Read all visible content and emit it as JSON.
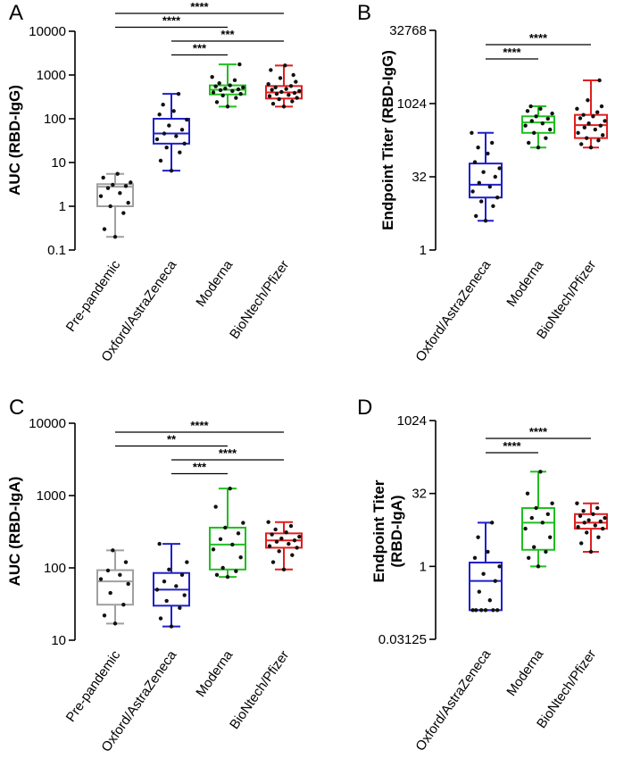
{
  "figure": {
    "panels": [
      {
        "id": "A",
        "letter": "A"
      },
      {
        "id": "B",
        "letter": "B"
      },
      {
        "id": "C",
        "letter": "C"
      },
      {
        "id": "D",
        "letter": "D"
      }
    ]
  },
  "chart_data": [
    {
      "panel": "A",
      "type": "box",
      "ylabel": "AUC (RBD-IgG)",
      "yscale": "log10",
      "ylim": [
        0.1,
        10000
      ],
      "yticks": [
        0.1,
        1,
        10,
        100,
        1000,
        10000
      ],
      "ytick_labels": [
        "0.1",
        "1",
        "10",
        "100",
        "1000",
        "10000"
      ],
      "categories": [
        "Pre-pandemic",
        "Oxford/AstraZeneca",
        "Moderna",
        "BioNtech/Pfizer"
      ],
      "colors": [
        "#a0a0a0",
        "#1f1fc8",
        "#1fbf1f",
        "#e01e1e"
      ],
      "boxes": [
        {
          "min": 0.2,
          "q1": 1.0,
          "median": 2.8,
          "q3": 3.2,
          "max": 5.5
        },
        {
          "min": 6.5,
          "q1": 27,
          "median": 46,
          "q3": 100,
          "max": 370
        },
        {
          "min": 190,
          "q1": 360,
          "median": 460,
          "q3": 580,
          "max": 1750
        },
        {
          "min": 190,
          "q1": 290,
          "median": 400,
          "q3": 560,
          "max": 1650
        }
      ],
      "points": [
        [
          0.2,
          0.3,
          0.7,
          1.0,
          1.2,
          1.7,
          2.0,
          2.6,
          2.9,
          3.1,
          3.5,
          4.5,
          5.5
        ],
        [
          6.5,
          11,
          17,
          22,
          27,
          34,
          40,
          46,
          56,
          70,
          95,
          125,
          150,
          210,
          370
        ],
        [
          190,
          240,
          300,
          340,
          370,
          400,
          430,
          450,
          470,
          490,
          520,
          550,
          580,
          650,
          760,
          900,
          1750
        ],
        [
          190,
          220,
          250,
          280,
          300,
          330,
          350,
          370,
          390,
          410,
          430,
          460,
          480,
          520,
          560,
          620,
          700,
          850,
          1000,
          1300,
          1650
        ]
      ],
      "significance": [
        {
          "from": 0,
          "to": 3,
          "label": "****"
        },
        {
          "from": 0,
          "to": 2,
          "label": "****"
        },
        {
          "from": 1,
          "to": 3,
          "label": "***"
        },
        {
          "from": 1,
          "to": 2,
          "label": "***"
        }
      ]
    },
    {
      "panel": "B",
      "type": "box",
      "ylabel": "Endpoint Titer (RBD-IgG)",
      "yscale": "log2",
      "ylim": [
        1,
        32768
      ],
      "yticks": [
        1,
        32,
        1024,
        32768
      ],
      "ytick_labels": [
        "1",
        "32",
        "1024",
        "32768"
      ],
      "categories": [
        "Oxford/AstraZeneca",
        "Moderna",
        "BioNtech/Pfizer"
      ],
      "colors": [
        "#1f1fc8",
        "#1fbf1f",
        "#e01e1e"
      ],
      "boxes": [
        {
          "min": 4,
          "q1": 12,
          "median": 22,
          "q3": 60,
          "max": 256
        },
        {
          "min": 128,
          "q1": 256,
          "median": 420,
          "q3": 560,
          "max": 900
        },
        {
          "min": 128,
          "q1": 200,
          "median": 370,
          "q3": 600,
          "max": 3072
        }
      ],
      "points": [
        [
          4,
          5,
          8,
          10,
          12,
          16,
          20,
          24,
          32,
          40,
          48,
          64,
          96,
          128,
          160,
          256
        ],
        [
          128,
          160,
          200,
          256,
          300,
          360,
          400,
          450,
          500,
          560,
          640,
          720,
          800,
          900
        ],
        [
          128,
          150,
          180,
          200,
          230,
          256,
          300,
          330,
          360,
          400,
          450,
          512,
          560,
          600,
          680,
          800,
          900,
          1200,
          3072
        ]
      ],
      "significance": [
        {
          "from": 0,
          "to": 2,
          "label": "****"
        },
        {
          "from": 0,
          "to": 1,
          "label": "****"
        }
      ]
    },
    {
      "panel": "C",
      "type": "box",
      "ylabel": "AUC (RBD-IgA)",
      "yscale": "log10",
      "ylim": [
        10,
        10000
      ],
      "yticks": [
        10,
        100,
        1000,
        10000
      ],
      "ytick_labels": [
        "10",
        "100",
        "1000",
        "10000"
      ],
      "categories": [
        "Pre-pandemic",
        "Oxford/AstraZeneca",
        "Moderna",
        "BioNtech/Pfizer"
      ],
      "colors": [
        "#a0a0a0",
        "#1f1fc8",
        "#1fbf1f",
        "#e01e1e"
      ],
      "boxes": [
        {
          "min": 17,
          "q1": 31,
          "median": 65,
          "q3": 93,
          "max": 175
        },
        {
          "min": 15.5,
          "q1": 30,
          "median": 50,
          "q3": 85,
          "max": 215
        },
        {
          "min": 75,
          "q1": 95,
          "median": 210,
          "q3": 360,
          "max": 1250
        },
        {
          "min": 95,
          "q1": 190,
          "median": 240,
          "q3": 300,
          "max": 430
        }
      ],
      "points": [
        [
          17,
          22,
          31,
          45,
          60,
          70,
          80,
          92,
          120,
          175
        ],
        [
          15.5,
          20,
          28,
          35,
          42,
          50,
          56,
          65,
          80,
          95,
          120,
          215
        ],
        [
          75,
          80,
          90,
          100,
          140,
          180,
          210,
          250,
          300,
          360,
          420,
          700,
          1250
        ],
        [
          95,
          120,
          150,
          170,
          190,
          200,
          215,
          230,
          240,
          255,
          270,
          290,
          310,
          340,
          380,
          430
        ]
      ],
      "significance": [
        {
          "from": 0,
          "to": 3,
          "label": "****"
        },
        {
          "from": 0,
          "to": 2,
          "label": "**"
        },
        {
          "from": 1,
          "to": 3,
          "label": "****"
        },
        {
          "from": 1,
          "to": 2,
          "label": "***"
        }
      ]
    },
    {
      "panel": "D",
      "type": "box",
      "ylabel_lines": [
        "Endpoint Titer",
        "(RBD-IgA)"
      ],
      "yscale": "log2",
      "ylim": [
        0.03125,
        1024
      ],
      "yticks": [
        0.03125,
        1,
        32,
        1024
      ],
      "ytick_labels": [
        "0.03125",
        "1",
        "32",
        "1024"
      ],
      "categories": [
        "Oxford/AstraZeneca",
        "Moderna",
        "BioNtech/Pfizer"
      ],
      "colors": [
        "#1f1fc8",
        "#1fbf1f",
        "#e01e1e"
      ],
      "boxes": [
        {
          "min": 0.125,
          "q1": 0.125,
          "median": 0.5,
          "q3": 1.2,
          "max": 8
        },
        {
          "min": 1,
          "q1": 2.2,
          "median": 8,
          "q3": 16,
          "max": 90
        },
        {
          "min": 2,
          "q1": 6,
          "median": 8,
          "q3": 12,
          "max": 20
        }
      ],
      "points": [
        [
          0.125,
          0.125,
          0.125,
          0.125,
          0.125,
          0.125,
          0.2,
          0.3,
          0.5,
          0.7,
          1,
          1.5,
          2,
          4,
          8
        ],
        [
          1,
          1.5,
          2,
          2.5,
          4,
          6,
          8,
          10,
          12,
          16,
          20,
          32,
          90
        ],
        [
          2,
          3,
          4,
          5,
          6,
          6.5,
          7,
          8,
          8.5,
          9,
          10,
          11,
          12,
          14,
          16,
          20
        ]
      ],
      "significance": [
        {
          "from": 0,
          "to": 2,
          "label": "****"
        },
        {
          "from": 0,
          "to": 1,
          "label": "****"
        }
      ]
    }
  ]
}
